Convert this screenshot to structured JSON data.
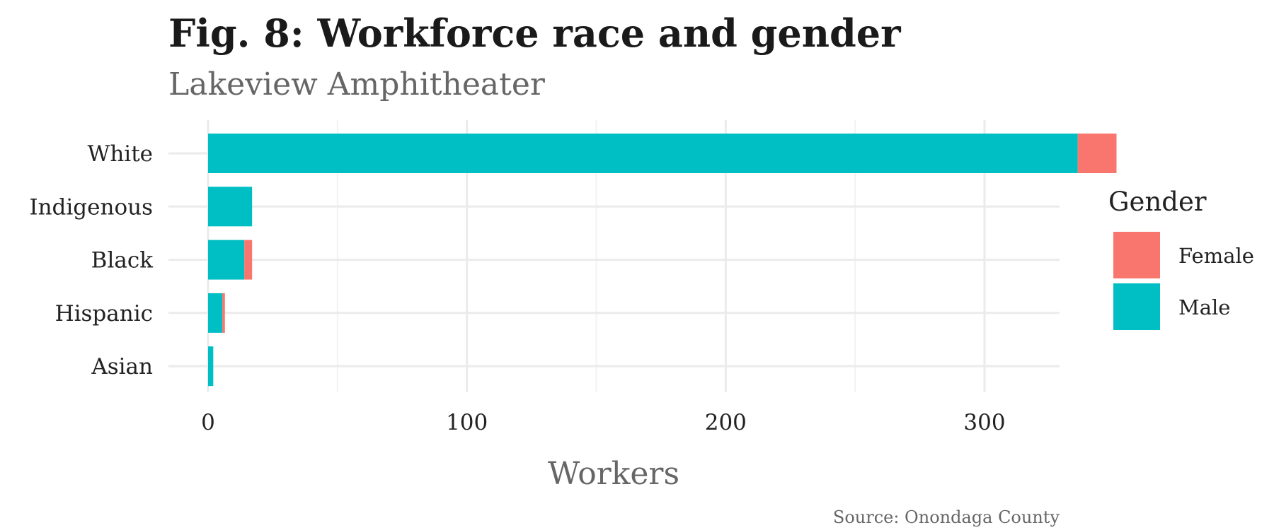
{
  "chart_data": {
    "type": "bar",
    "orientation": "horizontal",
    "stacked": true,
    "title": "Fig. 8: Workforce race and gender",
    "subtitle": "Lakeview Amphitheater",
    "xlabel": "Workers",
    "ylabel": "",
    "caption": "Source: Onondaga County",
    "categories": [
      "White",
      "Indigenous",
      "Black",
      "Hispanic",
      "Asian"
    ],
    "series": [
      {
        "name": "Male",
        "color": "#00BFC4",
        "values": [
          336,
          17,
          14,
          5.5,
          2
        ]
      },
      {
        "name": "Female",
        "color": "#F8766D",
        "values": [
          15,
          0,
          3,
          1,
          0
        ]
      }
    ],
    "xlim": [
      0,
      350
    ],
    "xticks": [
      0,
      100,
      200,
      300
    ],
    "xtick_labels": [
      "0",
      "100",
      "200",
      "300"
    ],
    "grid": true,
    "legend": {
      "title": "Gender",
      "position": "right",
      "items": [
        {
          "label": "Female",
          "color": "#F8766D"
        },
        {
          "label": "Male",
          "color": "#00BFC4"
        }
      ]
    }
  }
}
